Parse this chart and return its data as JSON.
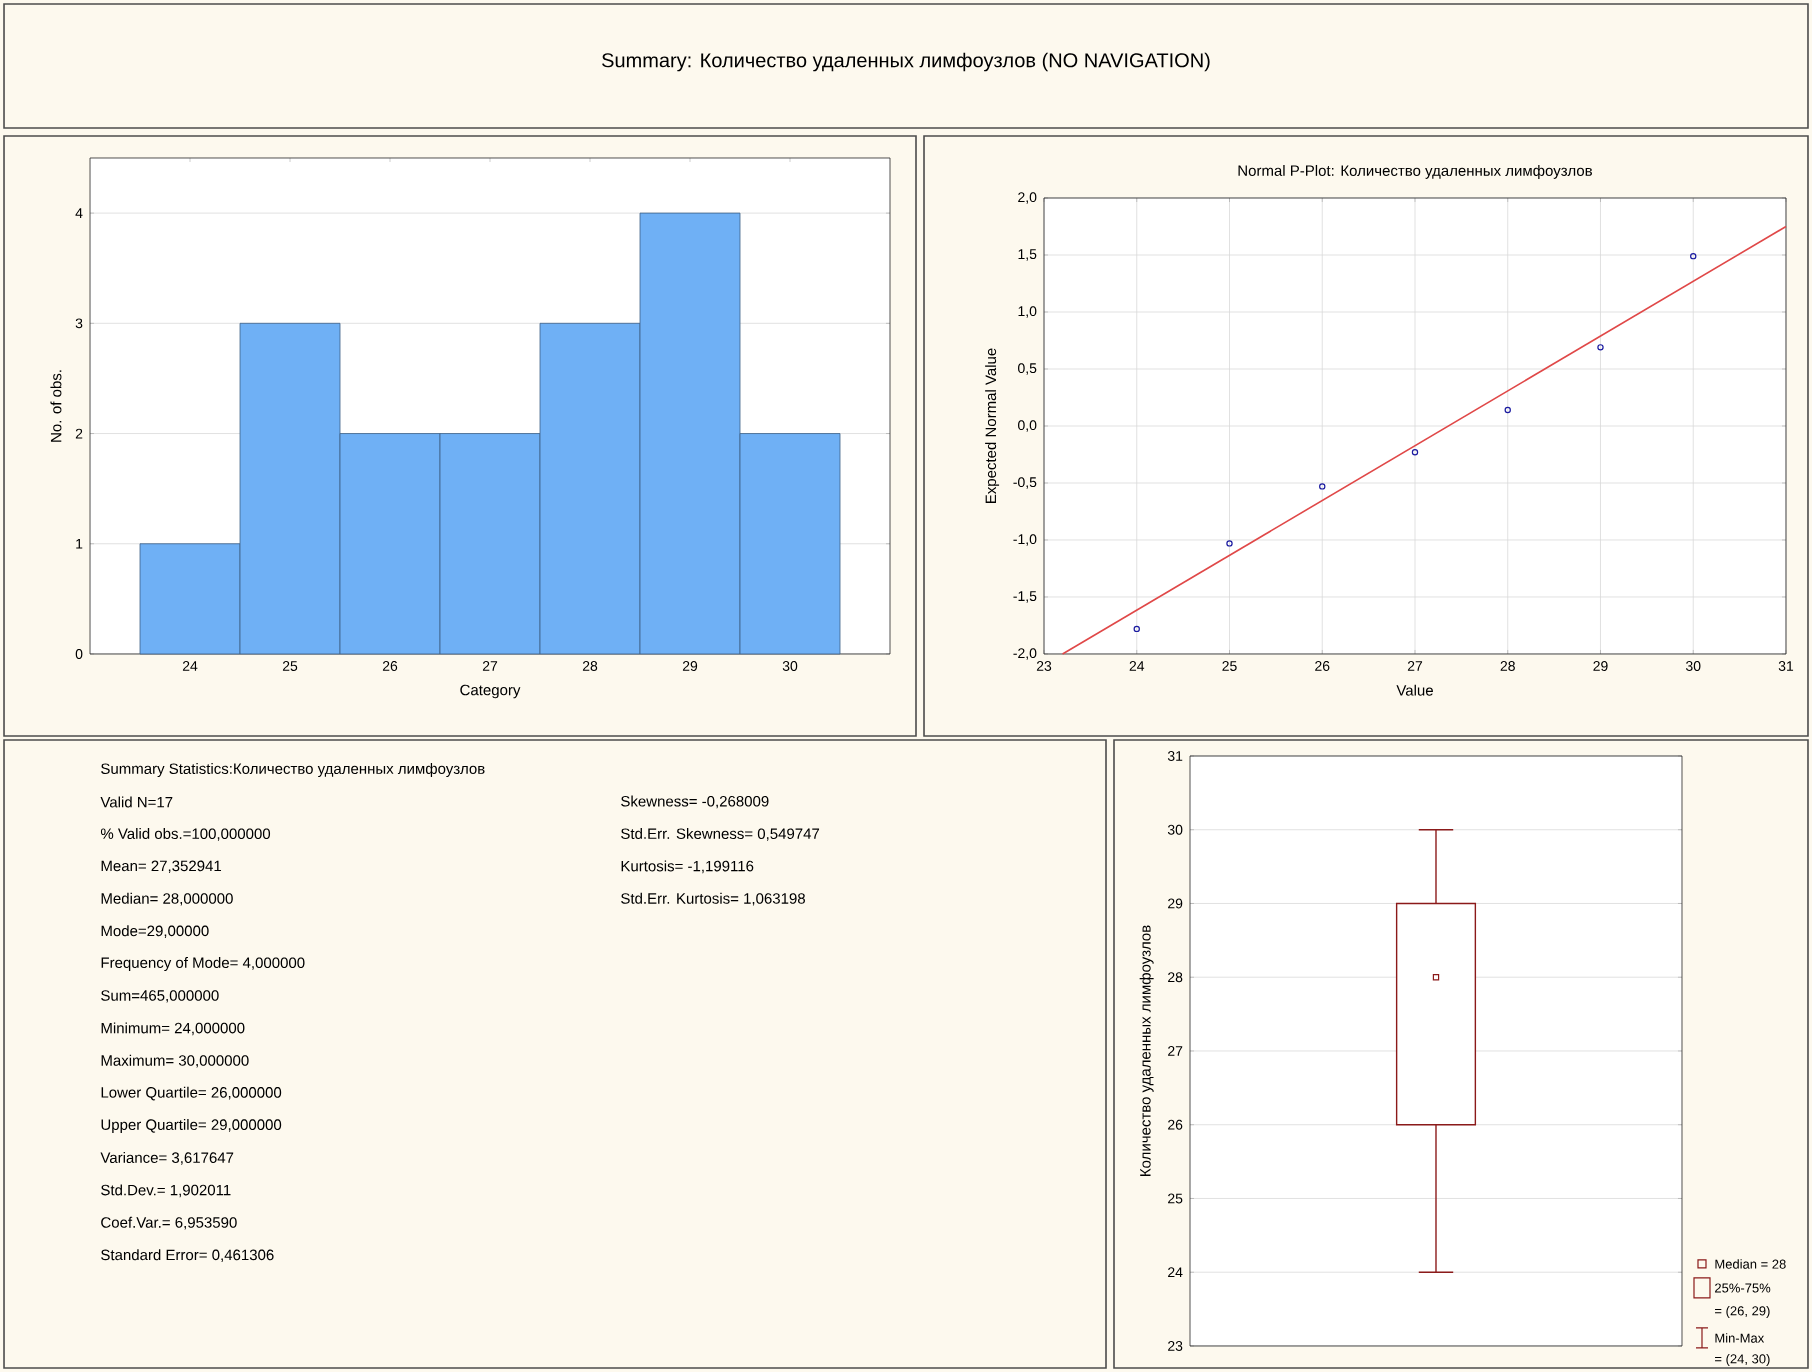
{
  "chart_data": [
    {
      "type": "other",
      "title": "Summary: Количество удаленных лимфоузлов (NO NAVIGATION)"
    },
    {
      "type": "bar",
      "categories": [
        "24",
        "25",
        "26",
        "27",
        "28",
        "29",
        "30"
      ],
      "values": [
        1,
        3,
        2,
        2,
        3,
        4,
        2
      ],
      "color": "#6fb0f5",
      "xlabel": "Category",
      "ylabel": "No. of obs.",
      "ylim": [
        0,
        4.5
      ],
      "yticks": [
        0,
        1,
        2,
        3,
        4
      ],
      "grid": "y"
    },
    {
      "type": "scatter",
      "title": "Normal P-Plot: Количество удаленных лимфоузлов",
      "xlabel": "Value",
      "ylabel": "Expected Normal Value",
      "xlim": [
        23,
        31
      ],
      "xticks": [
        23,
        24,
        25,
        26,
        27,
        28,
        29,
        30,
        31
      ],
      "ylim": [
        -2,
        2
      ],
      "yticks": [
        {
          "value": -2,
          "label": "-2,0"
        },
        {
          "value": -1.5,
          "label": "-1,5"
        },
        {
          "value": -1,
          "label": "-1,0"
        },
        {
          "value": -0.5,
          "label": "-0,5"
        },
        {
          "value": 0,
          "label": "0,0"
        },
        {
          "value": 0.5,
          "label": "0,5"
        },
        {
          "value": 1,
          "label": "1,0"
        },
        {
          "value": 1.5,
          "label": "1,5"
        },
        {
          "value": 2,
          "label": "2,0"
        }
      ],
      "grid": true,
      "series": [
        {
          "type": "scatter",
          "marker": "circle",
          "color": "#1a1aa0",
          "x": [
            24,
            25,
            26,
            27,
            28,
            29,
            30
          ],
          "values": [
            -1.78,
            -1.03,
            -0.53,
            -0.23,
            0.14,
            0.69,
            1.49
          ]
        },
        {
          "type": "line",
          "color": "#e04848",
          "x": [
            23.2,
            31
          ],
          "values": [
            -2.0,
            1.75
          ]
        }
      ]
    },
    {
      "type": "other",
      "title": "Summary Statistics:Количество удаленных лимфоузлов",
      "annotations": [
        "Valid N=17",
        "Skewness= -0,268009",
        "% Valid obs.=100,000000",
        "Std.Err. Skewness=  0,549747",
        "Mean= 27,352941",
        "Kurtosis= -1,199116",
        "Median= 28,000000",
        "Std.Err. Kurtosis=  1,063198",
        "Mode=29,00000",
        "Frequency of Mode=  4,000000",
        "Sum=465,000000",
        "Minimum= 24,000000",
        "Maximum= 30,000000",
        "Lower Quartile= 26,000000",
        "Upper Quartile= 29,000000",
        "Variance=  3,617647",
        "Std.Dev.=  1,902011",
        "Coef.Var.=  6,953590",
        "Standard Error=  0,461306"
      ]
    },
    {
      "type": "box",
      "categories": [
        null
      ],
      "ylabel": "Количество удаленных лимфоузлов",
      "ylim": [
        23,
        31
      ],
      "yticks": [
        23,
        24,
        25,
        26,
        27,
        28,
        29,
        30,
        31
      ],
      "grid": "y",
      "color": "#8b1a1a",
      "boxes": [
        {
          "low": 24,
          "q1": 26,
          "median": 28,
          "q3": 29,
          "high": 30
        }
      ],
      "annotations": [
        "Median = 28",
        "25%-75%",
        "= (26, 29)",
        "Min-Max",
        "= (24, 30)"
      ]
    }
  ]
}
